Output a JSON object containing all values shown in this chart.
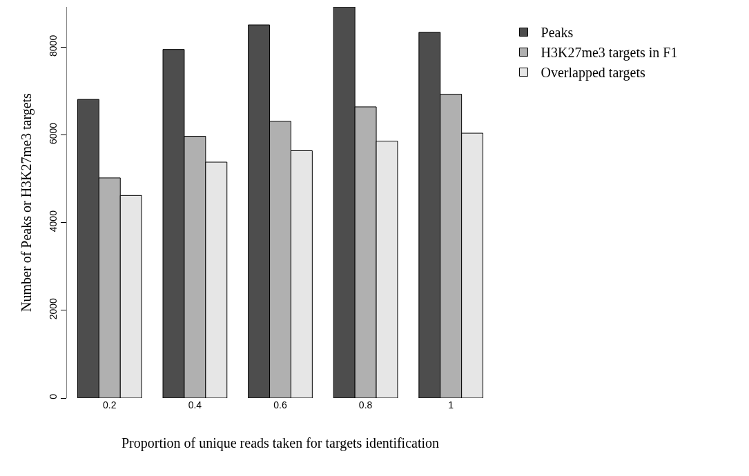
{
  "chart_data": {
    "type": "bar",
    "xlabel": "Proportion of unique reads taken for targets identification",
    "ylabel": "Number of Peaks or H3K27me3 targets",
    "categories": [
      "0.2",
      "0.4",
      "0.6",
      "0.8",
      "1"
    ],
    "series": [
      {
        "name": "Peaks",
        "color": "#4d4d4d",
        "values": [
          6810,
          7950,
          8510,
          8920,
          8340
        ]
      },
      {
        "name": "H3K27me3 targets in F1",
        "color": "#b0b0b0",
        "values": [
          5020,
          5970,
          6310,
          6640,
          6930
        ]
      },
      {
        "name": "Overlapped targets",
        "color": "#e6e6e6",
        "values": [
          4620,
          5380,
          5640,
          5860,
          6040
        ]
      }
    ],
    "ylim": [
      0,
      8920
    ],
    "yticks": [
      0,
      2000,
      4000,
      6000,
      8000
    ],
    "grid": false,
    "legend": "right"
  }
}
